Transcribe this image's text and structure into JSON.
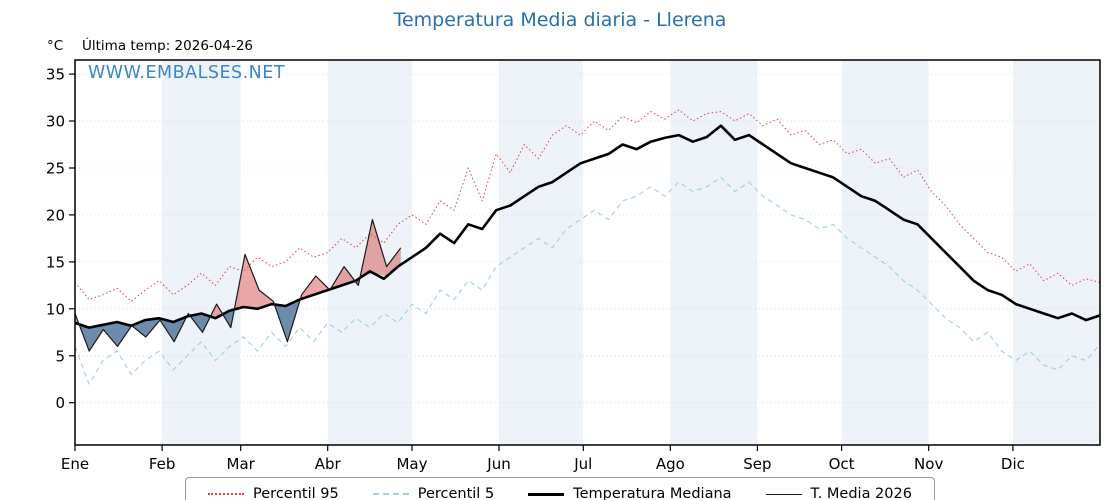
{
  "header": {
    "title": "Temperatura Media diaria - Llerena",
    "unit_label": "°C",
    "last_temp": "Última temp: 2026-04-26",
    "watermark": "WWW.EMBALSES.NET"
  },
  "colors": {
    "title": "#2a6fad",
    "watermark": "#3c85c6",
    "p95": "#dd4444",
    "p5": "#9fd0e4",
    "median": "#000000",
    "t2026": "#1a1a1a",
    "fill_above": "#d95f5f",
    "fill_below": "#54779e",
    "band": "#edf3f9",
    "grid": "#cfd8e3"
  },
  "chart_data": {
    "type": "line",
    "title": "Temperatura Media diaria - Llerena",
    "ylabel": "°C",
    "ylim": [
      -4.5,
      36.5
    ],
    "yticks": [
      0,
      5,
      10,
      15,
      20,
      25,
      30,
      35
    ],
    "months": [
      "Ene",
      "Feb",
      "Mar",
      "Abr",
      "May",
      "Jun",
      "Jul",
      "Ago",
      "Sep",
      "Oct",
      "Nov",
      "Dic"
    ],
    "month_start_days": [
      0,
      31,
      59,
      90,
      120,
      151,
      181,
      212,
      243,
      273,
      304,
      334
    ],
    "days_total": 365,
    "grid": true,
    "legend_position": "bottom",
    "annotations": [
      "Última temp: 2026-04-26"
    ],
    "series": [
      {
        "name": "Percentil 95",
        "style": "dotted",
        "x_end": 365,
        "values": [
          12.8,
          11.0,
          11.5,
          12.2,
          10.8,
          12.0,
          13.0,
          11.5,
          12.5,
          13.8,
          12.5,
          14.5,
          14.0,
          15.5,
          14.5,
          15.0,
          16.5,
          15.5,
          16.0,
          17.5,
          16.5,
          18.0,
          17.0,
          19.0,
          20.0,
          19.0,
          21.5,
          20.5,
          25.0,
          21.5,
          26.5,
          24.5,
          27.5,
          26.0,
          28.5,
          29.5,
          28.5,
          30.0,
          29.0,
          30.5,
          29.8,
          31.0,
          30.2,
          31.2,
          30.0,
          30.8,
          31.0,
          30.0,
          30.8,
          29.5,
          30.2,
          28.5,
          29.0,
          27.5,
          28.0,
          26.5,
          27.0,
          25.5,
          26.0,
          24.0,
          24.8,
          22.5,
          21.0,
          19.0,
          17.5,
          16.0,
          15.5,
          14.0,
          14.8,
          13.0,
          13.8,
          12.5,
          13.2,
          12.8
        ]
      },
      {
        "name": "Percentil 5",
        "style": "dashed",
        "x_end": 365,
        "values": [
          6.0,
          2.0,
          4.5,
          5.5,
          3.0,
          4.5,
          5.5,
          3.5,
          5.0,
          6.5,
          4.5,
          6.0,
          7.0,
          5.5,
          7.5,
          6.0,
          8.0,
          6.5,
          8.5,
          7.5,
          9.0,
          8.0,
          9.5,
          8.5,
          10.5,
          9.5,
          12.0,
          11.0,
          13.0,
          12.0,
          14.5,
          15.5,
          16.5,
          17.5,
          16.5,
          18.5,
          19.5,
          20.5,
          19.5,
          21.5,
          22.0,
          23.0,
          22.0,
          23.5,
          22.5,
          23.0,
          24.0,
          22.5,
          23.5,
          22.0,
          21.0,
          20.0,
          19.5,
          18.5,
          19.0,
          17.5,
          16.5,
          15.5,
          14.5,
          13.0,
          12.0,
          10.5,
          9.0,
          8.0,
          6.5,
          7.5,
          5.5,
          4.5,
          5.5,
          4.0,
          3.5,
          5.0,
          4.5,
          6.2
        ]
      },
      {
        "name": "Temperatura Mediana",
        "style": "solid-thick",
        "x_end": 365,
        "values": [
          8.5,
          8.0,
          8.3,
          8.6,
          8.2,
          8.8,
          9.0,
          8.6,
          9.2,
          9.5,
          9.0,
          9.8,
          10.2,
          10.0,
          10.5,
          10.3,
          11.0,
          11.5,
          12.0,
          12.5,
          13.0,
          14.0,
          13.2,
          14.5,
          15.5,
          16.5,
          18.0,
          17.0,
          19.0,
          18.5,
          20.5,
          21.0,
          22.0,
          23.0,
          23.5,
          24.5,
          25.5,
          26.0,
          26.5,
          27.5,
          27.0,
          27.8,
          28.2,
          28.5,
          27.8,
          28.3,
          29.5,
          28.0,
          28.5,
          27.5,
          26.5,
          25.5,
          25.0,
          24.5,
          24.0,
          23.0,
          22.0,
          21.5,
          20.5,
          19.5,
          19.0,
          17.5,
          16.0,
          14.5,
          13.0,
          12.0,
          11.5,
          10.5,
          10.0,
          9.5,
          9.0,
          9.5,
          8.8,
          9.3
        ]
      },
      {
        "name": "T. Media 2026",
        "style": "solid-thin",
        "x_end": 116,
        "values": [
          9.5,
          5.5,
          7.8,
          6.0,
          8.2,
          7.0,
          8.8,
          6.5,
          9.5,
          7.5,
          10.5,
          8.0,
          15.8,
          12.0,
          10.8,
          6.5,
          11.5,
          13.5,
          12.0,
          14.5,
          12.5,
          19.5,
          14.5,
          16.5
        ]
      }
    ]
  },
  "legend": {
    "items": [
      {
        "label": "Percentil 95"
      },
      {
        "label": "Percentil 5"
      },
      {
        "label": "Temperatura Mediana"
      },
      {
        "label": "T. Media 2026"
      }
    ]
  }
}
